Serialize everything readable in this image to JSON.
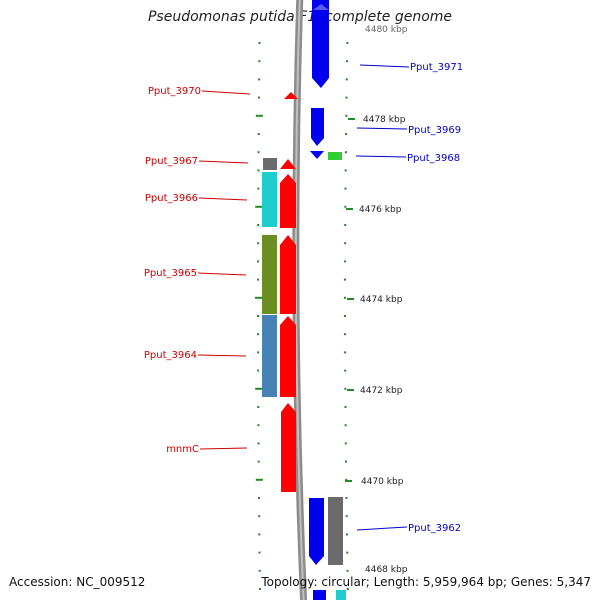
{
  "title": "Pseudomonas putida F1, complete genome",
  "footer": {
    "accession": "Accession: NC_009512",
    "topology": "Topology: circular; Length: 5,959,964 bp; Genes: 5,347"
  },
  "colors": {
    "backbone": "#808080",
    "tick": "#228b22",
    "reverse_gene": "#ff0000",
    "forward_gene": "#0000ee",
    "left_label": "#cc0000",
    "right_label": "#0000cc",
    "cog_gray": "#6b6b6b",
    "cog_cyan": "#1ecece",
    "cog_olive": "#6b8e23",
    "cog_steelblue": "#4682b4",
    "cog_green": "#32cd32"
  },
  "scale_labels": [
    "4480 kbp",
    "4478 kbp",
    "4476 kbp",
    "4474 kbp",
    "4472 kbp",
    "4470 kbp",
    "4468 kbp"
  ],
  "left_genes": [
    "Pput_3970",
    "Pput_3967",
    "Pput_3966",
    "Pput_3965",
    "Pput_3964",
    "mnmC"
  ],
  "right_genes": [
    "Pput_3971",
    "Pput_3969",
    "Pput_3968",
    "Pput_3962"
  ]
}
